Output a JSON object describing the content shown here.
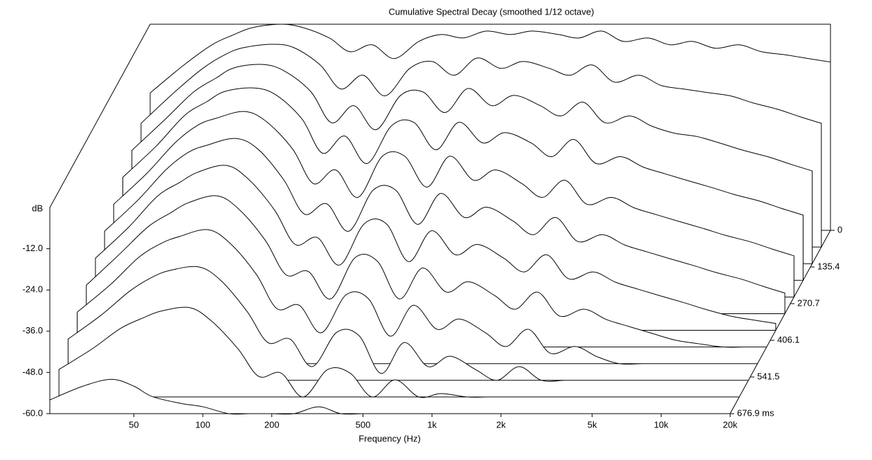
{
  "chart_data": {
    "type": "waterfall",
    "title": "Cumulative Spectral Decay (smoothed 1/12 octave)",
    "xlabel": "Frequency (Hz)",
    "ylabel": "dB",
    "xscale": "log",
    "xlim": [
      21.5,
      20000
    ],
    "xticks": [
      50,
      100,
      200,
      500,
      {
        "value": 1000,
        "label": "1k"
      },
      {
        "value": 2000,
        "label": "2k"
      },
      {
        "value": 5000,
        "label": "5k"
      },
      {
        "value": 10000,
        "label": "10k"
      },
      {
        "value": 20000,
        "label": "20k"
      }
    ],
    "ylim": [
      -60,
      0
    ],
    "yticks": [
      {
        "value": -60,
        "label": "-60.0"
      },
      {
        "value": -48,
        "label": "-48.0"
      },
      {
        "value": -36,
        "label": "-36.0"
      },
      {
        "value": -24,
        "label": "-24.0"
      },
      {
        "value": -12,
        "label": "-12.0"
      }
    ],
    "zlim": [
      0,
      676.9
    ],
    "zticks": [
      0,
      135.4,
      270.7,
      406.1,
      541.5,
      {
        "value": 676.9,
        "label": "676.9 ms"
      }
    ],
    "color": "#000000",
    "x": [
      21.5,
      30,
      40,
      50,
      60,
      80,
      100,
      130,
      160,
      200,
      250,
      320,
      400,
      500,
      630,
      800,
      1000,
      1300,
      1600,
      2000,
      2500,
      3200,
      4000,
      5000,
      6300,
      8000,
      10000,
      13000,
      16000,
      20000
    ],
    "slices": [
      {
        "time": 0,
        "values": [
          -20,
          -12,
          -6,
          -3,
          -1,
          0,
          -1,
          -4,
          -8,
          -6,
          -10,
          -5,
          -3,
          -4,
          -2,
          -3,
          -2,
          -3,
          -4,
          -2,
          -5,
          -4,
          -6,
          -5,
          -7,
          -6,
          -8,
          -9,
          -10,
          -11
        ]
      },
      {
        "time": 61.5,
        "values": [
          -24,
          -15,
          -8,
          -4,
          -2,
          -1,
          -2,
          -7,
          -14,
          -10,
          -16,
          -8,
          -6,
          -10,
          -5,
          -8,
          -6,
          -8,
          -10,
          -7,
          -12,
          -10,
          -13,
          -14,
          -15,
          -16,
          -18,
          -20,
          -22,
          -24
        ]
      },
      {
        "time": 123.1,
        "values": [
          -27,
          -18,
          -10,
          -6,
          -3,
          -2,
          -4,
          -10,
          -19,
          -14,
          -21,
          -11,
          -10,
          -16,
          -9,
          -14,
          -11,
          -14,
          -17,
          -13,
          -19,
          -17,
          -20,
          -22,
          -23,
          -25,
          -27,
          -29,
          -31,
          -33
        ]
      },
      {
        "time": 184.6,
        "values": [
          -30,
          -21,
          -12,
          -8,
          -5,
          -4,
          -6,
          -13,
          -23,
          -18,
          -26,
          -15,
          -14,
          -22,
          -14,
          -20,
          -17,
          -20,
          -24,
          -19,
          -26,
          -24,
          -27,
          -29,
          -31,
          -33,
          -35,
          -37,
          -39,
          -41
        ]
      },
      {
        "time": 246.2,
        "values": [
          -33,
          -24,
          -15,
          -10,
          -8,
          -6,
          -9,
          -17,
          -27,
          -23,
          -31,
          -19,
          -19,
          -28,
          -19,
          -26,
          -23,
          -27,
          -31,
          -26,
          -33,
          -31,
          -34,
          -36,
          -38,
          -40,
          -42,
          -44,
          -46,
          -48
        ]
      },
      {
        "time": 307.7,
        "values": [
          -36,
          -27,
          -18,
          -13,
          -11,
          -9,
          -12,
          -21,
          -31,
          -28,
          -36,
          -24,
          -24,
          -34,
          -25,
          -32,
          -29,
          -33,
          -37,
          -32,
          -39,
          -37,
          -40,
          -42,
          -44,
          -46,
          -48,
          -50,
          -52,
          -54
        ]
      },
      {
        "time": 369.2,
        "values": [
          -39,
          -30,
          -21,
          -17,
          -14,
          -12,
          -16,
          -25,
          -35,
          -33,
          -41,
          -29,
          -29,
          -40,
          -31,
          -38,
          -35,
          -39,
          -43,
          -38,
          -45,
          -43,
          -46,
          -48,
          -50,
          -52,
          -54,
          -56,
          -57,
          -58
        ]
      },
      {
        "time": 430.8,
        "values": [
          -42,
          -33,
          -25,
          -21,
          -18,
          -16,
          -20,
          -29,
          -39,
          -38,
          -46,
          -34,
          -35,
          -46,
          -37,
          -44,
          -41,
          -45,
          -49,
          -44,
          -51,
          -49,
          -52,
          -54,
          -56,
          -58,
          -59,
          -60,
          -60,
          -60
        ]
      },
      {
        "time": 492.3,
        "values": [
          -45,
          -37,
          -29,
          -25,
          -23,
          -21,
          -25,
          -34,
          -44,
          -43,
          -51,
          -40,
          -41,
          -52,
          -43,
          -50,
          -47,
          -51,
          -55,
          -50,
          -57,
          -55,
          -58,
          -60,
          -60,
          -60,
          -60,
          -60,
          -60,
          -60
        ]
      },
      {
        "time": 553.8,
        "values": [
          -48,
          -41,
          -34,
          -30,
          -28,
          -27,
          -31,
          -40,
          -49,
          -48,
          -56,
          -46,
          -47,
          -58,
          -49,
          -56,
          -53,
          -57,
          -60,
          -56,
          -60,
          -60,
          -60,
          -60,
          -60,
          -60,
          -60,
          -60,
          -60,
          -60
        ]
      },
      {
        "time": 615.4,
        "values": [
          -52,
          -46,
          -40,
          -37,
          -35,
          -34,
          -38,
          -46,
          -54,
          -53,
          -60,
          -52,
          -53,
          -60,
          -55,
          -60,
          -59,
          -60,
          -60,
          -60,
          -60,
          -60,
          -60,
          -60,
          -60,
          -60,
          -60,
          -60,
          -60,
          -60
        ]
      },
      {
        "time": 676.9,
        "values": [
          -56,
          -52,
          -50,
          -52,
          -55,
          -57,
          -58,
          -60,
          -60,
          -60,
          -60,
          -58,
          -60,
          -60,
          -60,
          -60,
          -60,
          -60,
          -60,
          -60,
          -60,
          -60,
          -60,
          -60,
          -60,
          -60,
          -60,
          -60,
          -60,
          -60
        ]
      }
    ]
  }
}
